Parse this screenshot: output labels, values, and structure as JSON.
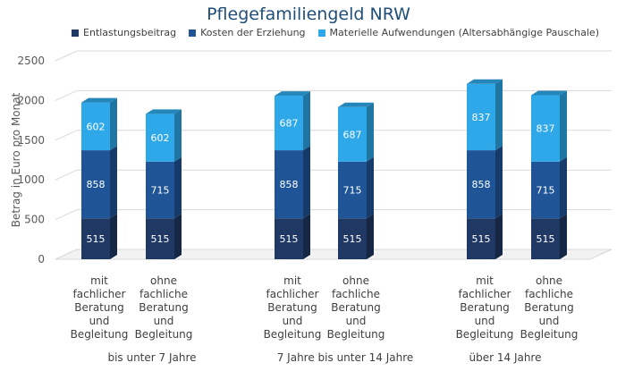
{
  "chart_data": {
    "type": "bar",
    "stacked": true,
    "three_d": true,
    "title": "Pflegefamiliengeld NRW",
    "ylabel": "Betrag in Euro pro Monat",
    "ylim": [
      0,
      2500
    ],
    "yticks": [
      0,
      500,
      1000,
      1500,
      2000,
      2500
    ],
    "grid": true,
    "legend_position": "top",
    "groups": [
      {
        "label": "bis unter 7 Jahre",
        "categories": [
          [
            "mit",
            "fachlicher",
            "Beratung",
            "und",
            "Begleitung"
          ],
          [
            "ohne",
            "fachliche",
            "Beratung",
            "und",
            "Begleitung"
          ]
        ]
      },
      {
        "label": "7 Jahre bis unter 14 Jahre",
        "categories": [
          [
            "mit",
            "fachlicher",
            "Beratung",
            "und",
            "Begleitung"
          ],
          [
            "ohne",
            "fachliche",
            "Beratung",
            "und",
            "Begleitung"
          ]
        ]
      },
      {
        "label": "über 14 Jahre",
        "categories": [
          [
            "mit",
            "fachlicher",
            "Beratung",
            "und",
            "Begleitung"
          ],
          [
            "ohne",
            "fachliche",
            "Beratung",
            "und",
            "Begleitung"
          ]
        ]
      }
    ],
    "series": [
      {
        "name": "Entlastungsbeitrag",
        "color": "#1f3864",
        "values": [
          515,
          515,
          515,
          515,
          515,
          515
        ]
      },
      {
        "name": "Kosten der Erziehung",
        "color": "#1f5597",
        "values": [
          858,
          715,
          858,
          715,
          858,
          715
        ]
      },
      {
        "name": "Materielle Aufwendungen (Altersabhängige Pauschale)",
        "color": "#2ea8e8",
        "values": [
          602,
          602,
          687,
          687,
          837,
          837
        ]
      }
    ]
  }
}
